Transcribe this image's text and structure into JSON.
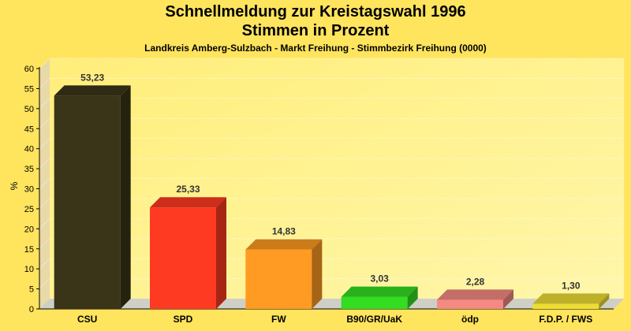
{
  "chart_data": {
    "type": "bar",
    "title": "Schnellmeldung zur Kreistagswahl 1996",
    "subtitle": "Stimmen in Prozent",
    "caption": "Landkreis Amberg-Sulzbach - Markt Freihung - Stimmbezirk Freihung (0000)",
    "ylabel": "%",
    "xlabel": "",
    "ylim": [
      0,
      60
    ],
    "yticks": [
      "0",
      "5",
      "10",
      "15",
      "20",
      "25",
      "30",
      "35",
      "40",
      "45",
      "50",
      "55",
      "60"
    ],
    "categories": [
      "CSU",
      "SPD",
      "FW",
      "B90/GR/UaK",
      "ödp",
      "F.D.P. / FWS"
    ],
    "values": [
      53.23,
      25.33,
      14.83,
      3.03,
      2.28,
      1.3
    ],
    "value_labels": [
      "53,23",
      "25,33",
      "14,83",
      "3,03",
      "2,28",
      "1,30"
    ],
    "colors": [
      "#3A3418",
      "#FF3A22",
      "#FF9A22",
      "#33DD22",
      "#F58A82",
      "#EEDD33"
    ],
    "grid": true,
    "style": "3d"
  }
}
